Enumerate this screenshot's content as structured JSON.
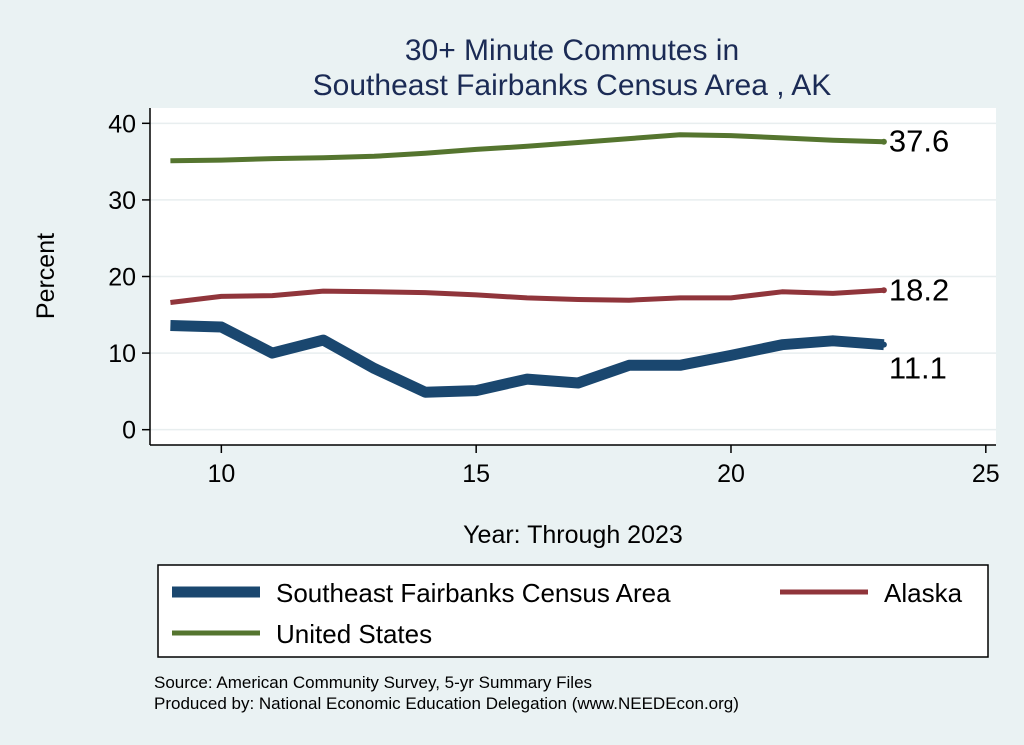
{
  "chart_data": {
    "type": "line",
    "title_lines": [
      "30+ Minute Commutes in",
      "Southeast Fairbanks Census Area , AK"
    ],
    "xlabel": "Year: Through 2023",
    "ylabel": "Percent",
    "xlim": [
      8.6,
      25.2
    ],
    "ylim": [
      -2,
      42
    ],
    "xticks": [
      10,
      15,
      20,
      25
    ],
    "yticks": [
      0,
      10,
      20,
      30,
      40
    ],
    "grid": true,
    "x": [
      9,
      10,
      11,
      12,
      13,
      14,
      15,
      16,
      17,
      18,
      19,
      20,
      21,
      22,
      23
    ],
    "series": [
      {
        "name": "Southeast Fairbanks Census Area",
        "color": "#1a476f",
        "width": 11,
        "values": [
          13.6,
          13.4,
          10.0,
          11.7,
          8.0,
          4.9,
          5.1,
          6.6,
          6.1,
          8.4,
          8.4,
          9.7,
          11.1,
          11.6,
          11.1
        ],
        "end_label": "11.1"
      },
      {
        "name": "Alaska",
        "color": "#90353b",
        "width": 5,
        "values": [
          16.6,
          17.4,
          17.5,
          18.1,
          18.0,
          17.9,
          17.6,
          17.2,
          17.0,
          16.9,
          17.2,
          17.2,
          18.0,
          17.8,
          18.2
        ],
        "end_label": "18.2"
      },
      {
        "name": "United States",
        "color": "#55752f",
        "width": 5,
        "values": [
          35.1,
          35.2,
          35.4,
          35.5,
          35.7,
          36.1,
          36.6,
          37.0,
          37.5,
          38.0,
          38.5,
          38.4,
          38.1,
          37.8,
          37.6
        ],
        "end_label": "37.6"
      }
    ],
    "legend_position": "bottom",
    "colors": {
      "background": "#eaf2f3",
      "plot_background": "#ffffff",
      "title": "#1b2b55",
      "grid": "#e8eeef"
    }
  },
  "notes": [
    "Source: American Community Survey, 5-yr Summary Files",
    "Produced by: National Economic Education Delegation (www.NEEDEcon.org)"
  ]
}
